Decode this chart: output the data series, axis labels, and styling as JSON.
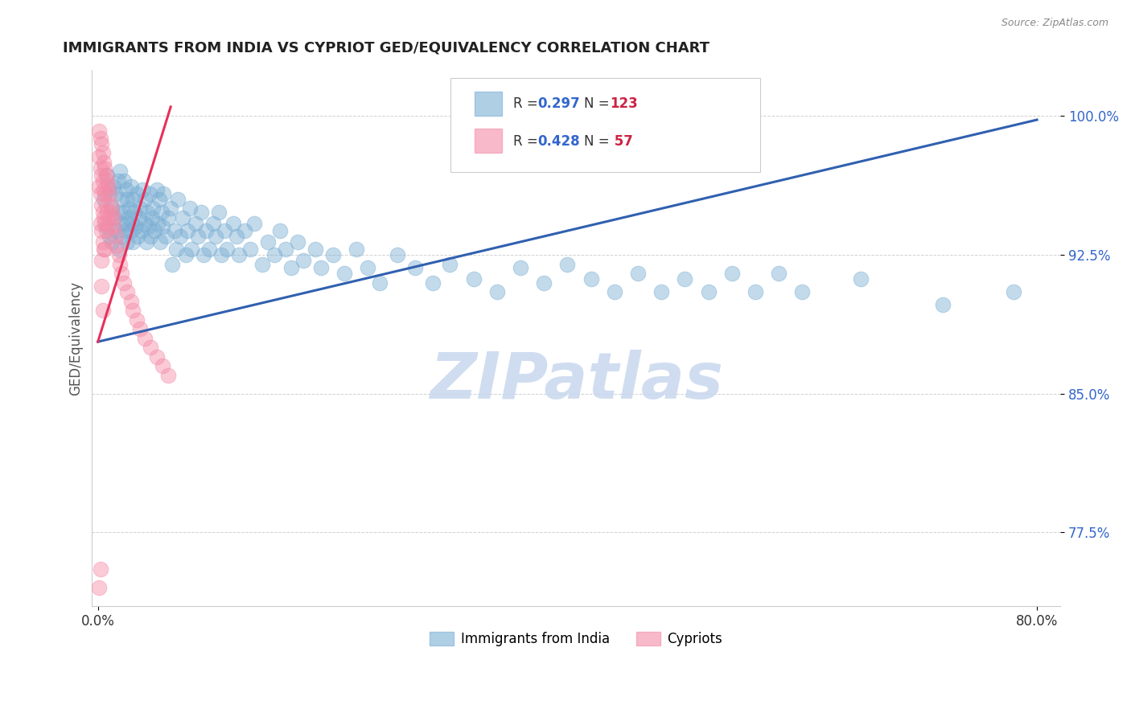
{
  "title": "IMMIGRANTS FROM INDIA VS CYPRIOT GED/EQUIVALENCY CORRELATION CHART",
  "source_text": "Source: ZipAtlas.com",
  "ylabel": "GED/Equivalency",
  "y_tick_labels": [
    "100.0%",
    "92.5%",
    "85.0%",
    "77.5%"
  ],
  "y_tick_values": [
    1.0,
    0.925,
    0.85,
    0.775
  ],
  "xlim": [
    -0.005,
    0.82
  ],
  "ylim": [
    0.735,
    1.025
  ],
  "watermark": "ZIPatlas",
  "watermark_color": "#c8d8ee",
  "blue_color": "#7bafd4",
  "pink_color": "#f48ca8",
  "blue_line_color": "#3060b0",
  "pink_line_color": "#e8305a",
  "title_color": "#222222",
  "title_fontsize": 13,
  "r_value_color": "#3366cc",
  "n_value_color": "#cc2244",
  "blue_line_x": [
    0.0,
    0.8
  ],
  "blue_line_y": [
    0.878,
    0.998
  ],
  "pink_line_x": [
    0.0,
    0.062
  ],
  "pink_line_y": [
    0.878,
    1.005
  ],
  "blue_dots_x": [
    0.005,
    0.007,
    0.008,
    0.01,
    0.01,
    0.012,
    0.012,
    0.013,
    0.014,
    0.015,
    0.016,
    0.017,
    0.018,
    0.018,
    0.019,
    0.02,
    0.02,
    0.021,
    0.022,
    0.022,
    0.023,
    0.024,
    0.024,
    0.025,
    0.025,
    0.026,
    0.027,
    0.028,
    0.028,
    0.029,
    0.03,
    0.03,
    0.031,
    0.032,
    0.033,
    0.034,
    0.035,
    0.036,
    0.037,
    0.038,
    0.04,
    0.04,
    0.041,
    0.042,
    0.043,
    0.044,
    0.045,
    0.046,
    0.047,
    0.048,
    0.05,
    0.051,
    0.052,
    0.053,
    0.054,
    0.055,
    0.056,
    0.058,
    0.06,
    0.062,
    0.063,
    0.065,
    0.067,
    0.068,
    0.07,
    0.072,
    0.075,
    0.076,
    0.078,
    0.08,
    0.083,
    0.085,
    0.088,
    0.09,
    0.092,
    0.095,
    0.098,
    0.1,
    0.103,
    0.105,
    0.108,
    0.11,
    0.115,
    0.118,
    0.12,
    0.125,
    0.13,
    0.133,
    0.14,
    0.145,
    0.15,
    0.155,
    0.16,
    0.165,
    0.17,
    0.175,
    0.185,
    0.19,
    0.2,
    0.21,
    0.22,
    0.23,
    0.24,
    0.255,
    0.27,
    0.285,
    0.3,
    0.32,
    0.34,
    0.36,
    0.38,
    0.4,
    0.42,
    0.44,
    0.46,
    0.48,
    0.5,
    0.52,
    0.54,
    0.56,
    0.58,
    0.6,
    0.65,
    0.72,
    0.78
  ],
  "blue_dots_y": [
    0.955,
    0.94,
    0.968,
    0.935,
    0.96,
    0.95,
    0.932,
    0.962,
    0.945,
    0.958,
    0.938,
    0.965,
    0.928,
    0.948,
    0.97,
    0.942,
    0.955,
    0.935,
    0.965,
    0.948,
    0.938,
    0.96,
    0.942,
    0.955,
    0.932,
    0.945,
    0.95,
    0.938,
    0.962,
    0.942,
    0.955,
    0.932,
    0.948,
    0.94,
    0.958,
    0.935,
    0.945,
    0.95,
    0.938,
    0.96,
    0.942,
    0.955,
    0.932,
    0.948,
    0.94,
    0.958,
    0.935,
    0.945,
    0.95,
    0.938,
    0.96,
    0.942,
    0.955,
    0.932,
    0.948,
    0.94,
    0.958,
    0.935,
    0.945,
    0.95,
    0.92,
    0.938,
    0.928,
    0.955,
    0.935,
    0.945,
    0.925,
    0.938,
    0.95,
    0.928,
    0.942,
    0.935,
    0.948,
    0.925,
    0.938,
    0.928,
    0.942,
    0.935,
    0.948,
    0.925,
    0.938,
    0.928,
    0.942,
    0.935,
    0.925,
    0.938,
    0.928,
    0.942,
    0.92,
    0.932,
    0.925,
    0.938,
    0.928,
    0.918,
    0.932,
    0.922,
    0.928,
    0.918,
    0.925,
    0.915,
    0.928,
    0.918,
    0.91,
    0.925,
    0.918,
    0.91,
    0.92,
    0.912,
    0.905,
    0.918,
    0.91,
    0.92,
    0.912,
    0.905,
    0.915,
    0.905,
    0.912,
    0.905,
    0.915,
    0.905,
    0.915,
    0.905,
    0.912,
    0.898,
    0.905
  ],
  "pink_dots_x": [
    0.001,
    0.001,
    0.001,
    0.002,
    0.002,
    0.002,
    0.002,
    0.003,
    0.003,
    0.003,
    0.003,
    0.003,
    0.004,
    0.004,
    0.004,
    0.004,
    0.005,
    0.005,
    0.005,
    0.005,
    0.006,
    0.006,
    0.006,
    0.006,
    0.007,
    0.007,
    0.007,
    0.008,
    0.008,
    0.009,
    0.009,
    0.01,
    0.01,
    0.011,
    0.012,
    0.013,
    0.014,
    0.015,
    0.016,
    0.018,
    0.019,
    0.02,
    0.022,
    0.025,
    0.028,
    0.03,
    0.033,
    0.036,
    0.04,
    0.045,
    0.05,
    0.055,
    0.06,
    0.003,
    0.004,
    0.002,
    0.001
  ],
  "pink_dots_y": [
    0.992,
    0.978,
    0.962,
    0.988,
    0.972,
    0.958,
    0.942,
    0.985,
    0.968,
    0.952,
    0.938,
    0.922,
    0.98,
    0.965,
    0.948,
    0.932,
    0.975,
    0.96,
    0.945,
    0.928,
    0.972,
    0.958,
    0.942,
    0.928,
    0.968,
    0.952,
    0.938,
    0.965,
    0.948,
    0.962,
    0.945,
    0.958,
    0.94,
    0.952,
    0.948,
    0.945,
    0.94,
    0.935,
    0.93,
    0.925,
    0.92,
    0.915,
    0.91,
    0.905,
    0.9,
    0.895,
    0.89,
    0.885,
    0.88,
    0.875,
    0.87,
    0.865,
    0.86,
    0.908,
    0.895,
    0.755,
    0.745
  ]
}
